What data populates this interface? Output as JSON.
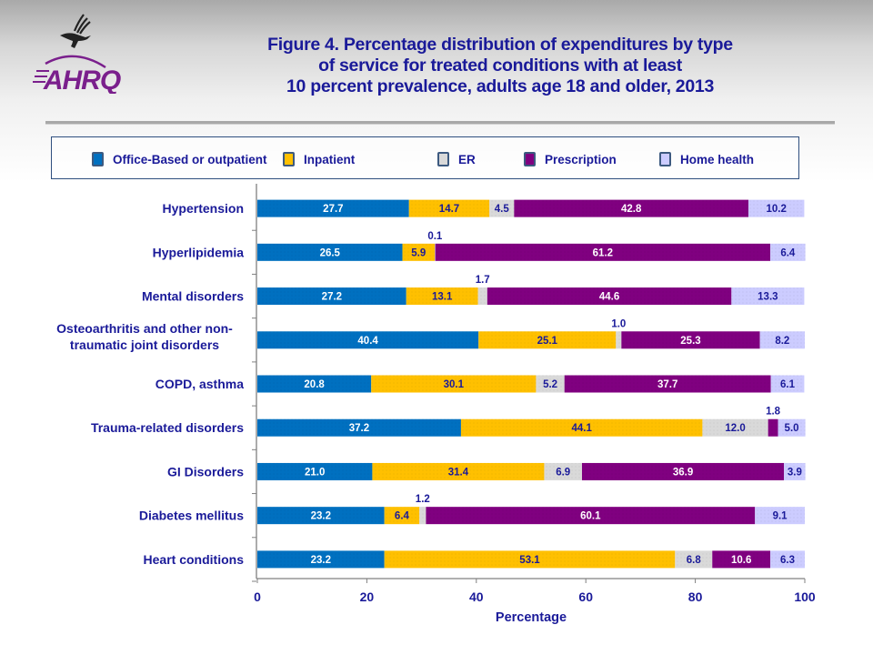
{
  "logo": {
    "name": "AHRQ",
    "text": "AHRQ",
    "brand_color": "#7a1f8c"
  },
  "title_lines": [
    "Figure 4. Percentage distribution of expenditures by type",
    "of service for treated conditions with at least",
    "10 percent prevalence, adults age 18 and older, 2013"
  ],
  "chart_data": {
    "type": "bar",
    "orientation": "horizontal",
    "stacked": true,
    "title": "Figure 4. Percentage distribution of expenditures by type of service for treated conditions with at least 10 percent prevalence, adults age 18 and older, 2013",
    "xlabel": "Percentage",
    "ylabel": "",
    "xlim": [
      0,
      100
    ],
    "xticks": [
      0,
      20,
      40,
      60,
      80,
      100
    ],
    "grid": false,
    "legend_position": "top",
    "categories": [
      "Hypertension",
      "Hyperlipidemia",
      "Mental disorders",
      "Osteoarthritis and other non-traumatic joint disorders",
      "COPD, asthma",
      "Trauma-related disorders",
      "GI Disorders",
      "Diabetes mellitus",
      "Heart conditions"
    ],
    "category_label_lines": [
      [
        "Hypertension"
      ],
      [
        "Hyperlipidemia"
      ],
      [
        "Mental disorders"
      ],
      [
        "Osteoarthritis and other non-",
        "traumatic joint disorders"
      ],
      [
        "COPD, asthma"
      ],
      [
        "Trauma-related disorders"
      ],
      [
        "GI Disorders"
      ],
      [
        "Diabetes mellitus"
      ],
      [
        "Heart conditions"
      ]
    ],
    "series": [
      {
        "name": "Office-Based or outpatient",
        "color": "#0070C0",
        "label_color": "#ffffff",
        "values": [
          27.7,
          26.5,
          27.2,
          40.4,
          20.8,
          37.2,
          21.0,
          23.2,
          23.2
        ]
      },
      {
        "name": "Inpatient",
        "color": "#FFC000",
        "label_color": "#1a1a99",
        "values": [
          14.7,
          5.9,
          13.1,
          25.1,
          30.1,
          44.1,
          31.4,
          6.4,
          53.1
        ]
      },
      {
        "name": "ER",
        "color": "#D9D9D9",
        "label_color": "#1a1a99",
        "values": [
          4.5,
          0.1,
          1.7,
          1.0,
          5.2,
          12.0,
          6.9,
          1.2,
          6.8
        ]
      },
      {
        "name": "Prescription",
        "color": "#800080",
        "label_color": "#ffffff",
        "values": [
          42.8,
          61.2,
          44.6,
          25.3,
          37.7,
          1.8,
          36.9,
          60.1,
          10.6
        ]
      },
      {
        "name": "Home health",
        "color": "#CCCCFF",
        "label_color": "#1a1a99",
        "values": [
          10.2,
          6.4,
          13.3,
          8.2,
          6.1,
          5.0,
          3.9,
          9.1,
          6.3
        ]
      }
    ],
    "labels_outside_threshold": 2.0
  }
}
